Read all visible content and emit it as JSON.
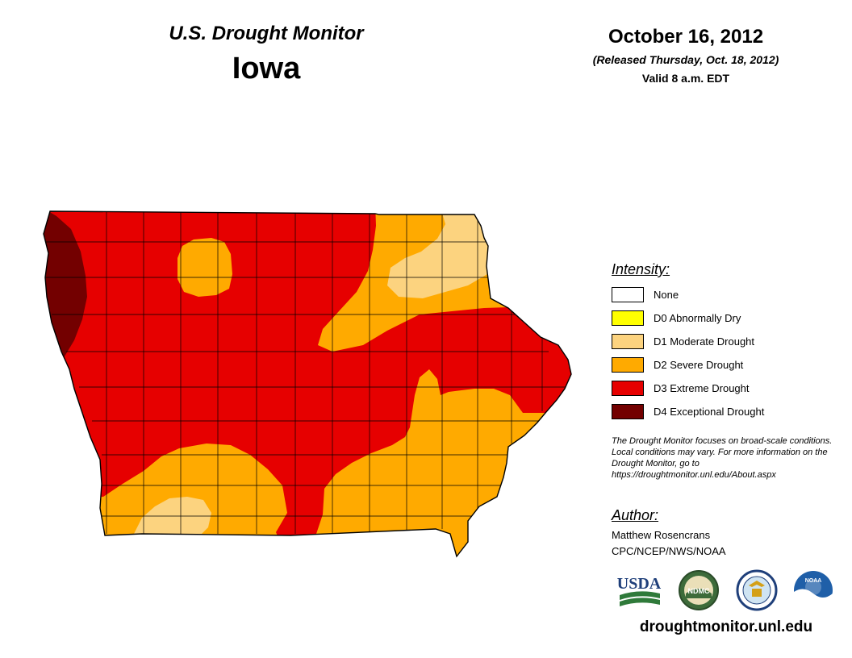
{
  "header": {
    "product_title": "U.S. Drought Monitor",
    "state": "Iowa",
    "date": "October 16, 2012",
    "released": "(Released Thursday, Oct. 18, 2012)",
    "valid": "Valid 8 a.m. EDT"
  },
  "legend": {
    "heading": "Intensity:",
    "items": [
      {
        "label": "None",
        "color": "#ffffff"
      },
      {
        "label": "D0 Abnormally Dry",
        "color": "#ffff00"
      },
      {
        "label": "D1 Moderate Drought",
        "color": "#fcd37f"
      },
      {
        "label": "D2 Severe Drought",
        "color": "#ffaa00"
      },
      {
        "label": "D3 Extreme Drought",
        "color": "#e60000"
      },
      {
        "label": "D4 Exceptional Drought",
        "color": "#730000"
      }
    ]
  },
  "disclaimer": "The Drought Monitor focuses on broad-scale conditions. Local conditions may vary. For more information on the Drought Monitor, go to https://droughtmonitor.unl.edu/About.aspx",
  "author": {
    "heading": "Author:",
    "name": "Matthew Rosencrans",
    "org": "CPC/NCEP/NWS/NOAA"
  },
  "logos": {
    "usda": "USDA",
    "ndmc": "NDMC",
    "noaa": "NOAA"
  },
  "footer_url": "droughtmonitor.unl.edu"
}
